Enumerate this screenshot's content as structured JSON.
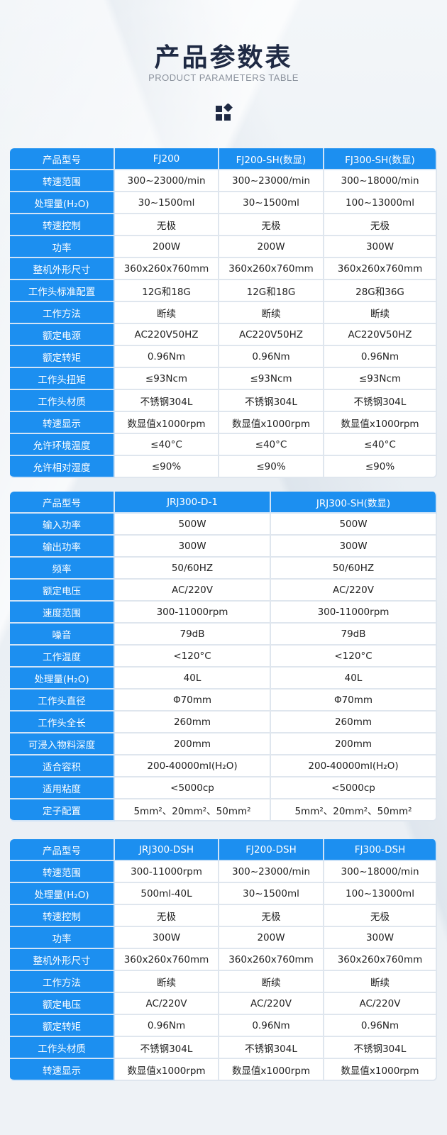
{
  "header": {
    "title": "产品参数表",
    "subtitle": "PRODUCT PARAMETERS TABLE",
    "icon": "grid-diamond-icon"
  },
  "colors": {
    "accent": "#1c8ff0",
    "title": "#1f2a44"
  },
  "table1": {
    "label": "产品型号",
    "models": [
      "FJ200",
      "FJ200-SH(数显)",
      "FJ300-SH(数显)"
    ],
    "rows": [
      {
        "label": "转速范围",
        "values": [
          "300~23000/min",
          "300~23000/min",
          "300~18000/min"
        ]
      },
      {
        "label": "处理量(H₂O)",
        "values": [
          "30~1500ml",
          "30~1500ml",
          "100~13000ml"
        ]
      },
      {
        "label": "转速控制",
        "values": [
          "无极",
          "无极",
          "无极"
        ]
      },
      {
        "label": "功率",
        "values": [
          "200W",
          "200W",
          "300W"
        ]
      },
      {
        "label": "整机外形尺寸",
        "values": [
          "360x260x760mm",
          "360x260x760mm",
          "360x260x760mm"
        ]
      },
      {
        "label": "工作头标准配置",
        "values": [
          "12G和18G",
          "12G和18G",
          "28G和36G"
        ]
      },
      {
        "label": "工作方法",
        "values": [
          "断续",
          "断续",
          "断续"
        ]
      },
      {
        "label": "额定电源",
        "values": [
          "AC220V50HZ",
          "AC220V50HZ",
          "AC220V50HZ"
        ]
      },
      {
        "label": "额定转矩",
        "values": [
          "0.96Nm",
          "0.96Nm",
          "0.96Nm"
        ]
      },
      {
        "label": "工作头扭矩",
        "values": [
          "≤93Ncm",
          "≤93Ncm",
          "≤93Ncm"
        ]
      },
      {
        "label": "工作头材质",
        "values": [
          "不锈钢304L",
          "不锈钢304L",
          "不锈钢304L"
        ]
      },
      {
        "label": "转速显示",
        "values": [
          "数显值x1000rpm",
          "数显值x1000rpm",
          "数显值x1000rpm"
        ]
      },
      {
        "label": "允许环境温度",
        "values": [
          "≤40°C",
          "≤40°C",
          "≤40°C"
        ]
      },
      {
        "label": "允许相对湿度",
        "values": [
          "≤90%",
          "≤90%",
          "≤90%"
        ]
      }
    ]
  },
  "table2": {
    "label": "产品型号",
    "models": [
      "JRJ300-D-1",
      "JRJ300-SH(数显)"
    ],
    "rows": [
      {
        "label": "输入功率",
        "values": [
          "500W",
          "500W"
        ]
      },
      {
        "label": "输出功率",
        "values": [
          "300W",
          "300W"
        ]
      },
      {
        "label": "频率",
        "values": [
          "50/60HZ",
          "50/60HZ"
        ]
      },
      {
        "label": "额定电压",
        "values": [
          "AC/220V",
          "AC/220V"
        ]
      },
      {
        "label": "速度范围",
        "values": [
          "300-11000rpm",
          "300-11000rpm"
        ]
      },
      {
        "label": "噪音",
        "values": [
          "79dB",
          "79dB"
        ]
      },
      {
        "label": "工作温度",
        "values": [
          "<120°C",
          "<120°C"
        ]
      },
      {
        "label": "处理量(H₂O)",
        "values": [
          "40L",
          "40L"
        ]
      },
      {
        "label": "工作头直径",
        "values": [
          "Φ70mm",
          "Φ70mm"
        ]
      },
      {
        "label": "工作头全长",
        "values": [
          "260mm",
          "260mm"
        ]
      },
      {
        "label": "可浸入物料深度",
        "values": [
          "200mm",
          "200mm"
        ]
      },
      {
        "label": "适合容积",
        "values": [
          "200-40000ml(H₂O)",
          "200-40000ml(H₂O)"
        ]
      },
      {
        "label": "适用粘度",
        "values": [
          "<5000cp",
          "<5000cp"
        ]
      },
      {
        "label": "定子配置",
        "values": [
          "5mm²、20mm²、50mm²",
          "5mm²、20mm²、50mm²"
        ]
      }
    ]
  },
  "table3": {
    "label": "产品型号",
    "models": [
      "JRJ300-DSH",
      "FJ200-DSH",
      "FJ300-DSH"
    ],
    "rows": [
      {
        "label": "转速范围",
        "values": [
          "300-11000rpm",
          "300~23000/min",
          "300~18000/min"
        ]
      },
      {
        "label": "处理量(H₂O)",
        "values": [
          "500ml-40L",
          "30~1500ml",
          "100~13000ml"
        ]
      },
      {
        "label": "转速控制",
        "values": [
          "无极",
          "无极",
          "无极"
        ]
      },
      {
        "label": "功率",
        "values": [
          "300W",
          "200W",
          "300W"
        ]
      },
      {
        "label": "整机外形尺寸",
        "values": [
          "360x260x760mm",
          "360x260x760mm",
          "360x260x760mm"
        ]
      },
      {
        "label": "工作方法",
        "values": [
          "断续",
          "断续",
          "断续"
        ]
      },
      {
        "label": "额定电压",
        "values": [
          "AC/220V",
          "AC/220V",
          "AC/220V"
        ]
      },
      {
        "label": "额定转矩",
        "values": [
          "0.96Nm",
          "0.96Nm",
          "0.96Nm"
        ]
      },
      {
        "label": "工作头材质",
        "values": [
          "不锈钢304L",
          "不锈钢304L",
          "不锈钢304L"
        ]
      },
      {
        "label": "转速显示",
        "values": [
          "数显值x1000rpm",
          "数显值x1000rpm",
          "数显值x1000rpm"
        ]
      }
    ]
  }
}
